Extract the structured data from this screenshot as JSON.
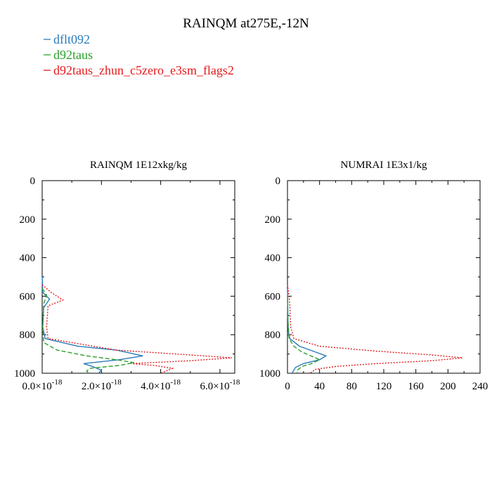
{
  "title": "RAINQM at275E,-12N",
  "legend": [
    {
      "label": "dflt092",
      "color": "#2b7bb9",
      "dash": "solid"
    },
    {
      "label": "d92taus",
      "color": "#2ca02c",
      "dash": "dashed"
    },
    {
      "label": "d92taus_zhun_c5zero_e3sm_flags2",
      "color": "#e41a1c",
      "dash": "dotted"
    }
  ],
  "chart_data": [
    {
      "type": "line",
      "title": "RAINQM  1E12xkg/kg",
      "xlim": [
        0,
        6.5e-18
      ],
      "ylim": [
        1000,
        0
      ],
      "y_inverted": true,
      "xticks": [
        0,
        2e-18,
        4e-18,
        6e-18
      ],
      "xtick_labels": [
        "0.0×10",
        "2.0×10",
        "4.0×10",
        "6.0×10"
      ],
      "xtick_exponent": "-18",
      "yticks": [
        0,
        200,
        400,
        600,
        800,
        1000
      ],
      "ytick_labels": [
        "0",
        "200",
        "400",
        "600",
        "800",
        "1000"
      ],
      "series": [
        {
          "name": "dflt092",
          "color": "#2b7bb9",
          "dash": "solid",
          "points": [
            [
              0,
              500
            ],
            [
              2e-20,
              580
            ],
            [
              2.5e-19,
              615
            ],
            [
              5e-20,
              660
            ],
            [
              2e-20,
              760
            ],
            [
              1e-19,
              820
            ],
            [
              1.2e-18,
              860
            ],
            [
              2.5e-18,
              880
            ],
            [
              3.4e-18,
              910
            ],
            [
              2.6e-18,
              930
            ],
            [
              1.4e-18,
              950
            ],
            [
              1.7e-18,
              965
            ],
            [
              2e-18,
              985
            ],
            [
              1.9e-18,
              1000
            ]
          ]
        },
        {
          "name": "d92taus",
          "color": "#2ca02c",
          "dash": "dashed",
          "points": [
            [
              0,
              560
            ],
            [
              1.5e-19,
              595
            ],
            [
              5e-20,
              640
            ],
            [
              2e-20,
              760
            ],
            [
              5e-20,
              840
            ],
            [
              5e-19,
              880
            ],
            [
              1.5e-18,
              910
            ],
            [
              2.5e-18,
              930
            ],
            [
              3.1e-18,
              945
            ],
            [
              2.6e-18,
              960
            ],
            [
              1.6e-18,
              975
            ],
            [
              1.5e-18,
              990
            ],
            [
              1.6e-18,
              1000
            ]
          ]
        },
        {
          "name": "d92taus_zhun_c5zero_e3sm_flags2",
          "color": "#e41a1c",
          "dash": "dotted",
          "points": [
            [
              0,
              540
            ],
            [
              3e-19,
              580
            ],
            [
              7e-19,
              620
            ],
            [
              2e-19,
              650
            ],
            [
              1.5e-19,
              760
            ],
            [
              2e-19,
              820
            ],
            [
              2.5e-18,
              880
            ],
            [
              5e-18,
              905
            ],
            [
              6.4e-18,
              920
            ],
            [
              5e-18,
              935
            ],
            [
              3e-18,
              950
            ],
            [
              3.8e-18,
              960
            ],
            [
              4.4e-18,
              975
            ],
            [
              4e-18,
              1000
            ]
          ]
        }
      ]
    },
    {
      "type": "line",
      "title": "NUMRAI  1E3x1/kg",
      "xlim": [
        0,
        240
      ],
      "ylim": [
        1000,
        0
      ],
      "y_inverted": true,
      "xticks": [
        0,
        40,
        80,
        120,
        160,
        200,
        240
      ],
      "xtick_labels": [
        "0",
        "40",
        "80",
        "120",
        "160",
        "200",
        "240"
      ],
      "yticks": [
        0,
        200,
        400,
        600,
        800,
        1000
      ],
      "ytick_labels": [
        "0",
        "200",
        "400",
        "600",
        "800",
        "1000"
      ],
      "series": [
        {
          "name": "dflt092",
          "color": "#2b7bb9",
          "dash": "solid",
          "points": [
            [
              0,
              560
            ],
            [
              0.5,
              700
            ],
            [
              1,
              780
            ],
            [
              3,
              820
            ],
            [
              15,
              860
            ],
            [
              35,
              890
            ],
            [
              48,
              910
            ],
            [
              40,
              930
            ],
            [
              20,
              950
            ],
            [
              10,
              970
            ],
            [
              7,
              990
            ],
            [
              6,
              1000
            ]
          ]
        },
        {
          "name": "d92taus",
          "color": "#2ca02c",
          "dash": "dashed",
          "points": [
            [
              0,
              600
            ],
            [
              0.5,
              720
            ],
            [
              2,
              820
            ],
            [
              8,
              860
            ],
            [
              18,
              890
            ],
            [
              32,
              915
            ],
            [
              40,
              930
            ],
            [
              30,
              950
            ],
            [
              18,
              965
            ],
            [
              12,
              985
            ],
            [
              12,
              1000
            ]
          ]
        },
        {
          "name": "d92taus_zhun_c5zero_e3sm_flags2",
          "color": "#e41a1c",
          "dash": "dotted",
          "points": [
            [
              0,
              540
            ],
            [
              2,
              600
            ],
            [
              3,
              650
            ],
            [
              4,
              760
            ],
            [
              8,
              820
            ],
            [
              40,
              860
            ],
            [
              110,
              885
            ],
            [
              180,
              905
            ],
            [
              218,
              920
            ],
            [
              180,
              935
            ],
            [
              110,
              950
            ],
            [
              60,
              965
            ],
            [
              35,
              980
            ],
            [
              28,
              1000
            ]
          ]
        }
      ]
    }
  ]
}
